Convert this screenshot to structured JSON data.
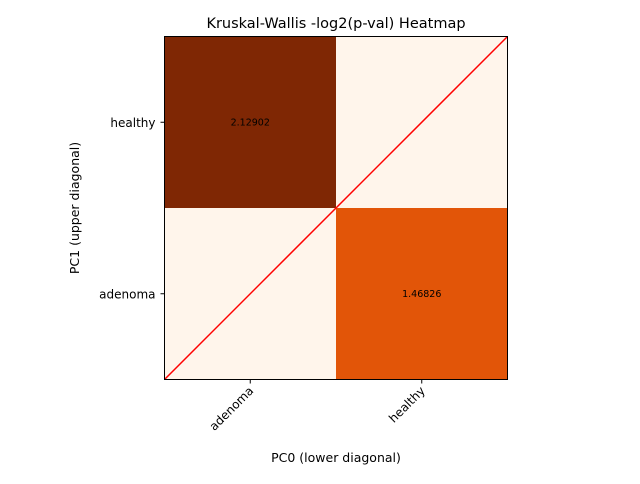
{
  "chart_data": {
    "type": "heatmap",
    "title": "Kruskal-Wallis -log2(p-val) Heatmap",
    "xlabel": "PC0 (lower diagonal)",
    "ylabel": "PC1 (upper diagonal)",
    "x_categories": [
      "adenoma",
      "healthy"
    ],
    "y_categories": [
      "healthy",
      "adenoma"
    ],
    "cells": [
      {
        "row": "healthy",
        "col": "adenoma",
        "value": 2.12902,
        "label": "2.12902",
        "color": "#7f2704"
      },
      {
        "row": "healthy",
        "col": "healthy",
        "value": 0,
        "label": "",
        "color": "#fff5eb"
      },
      {
        "row": "adenoma",
        "col": "adenoma",
        "value": 0,
        "label": "",
        "color": "#fff5eb"
      },
      {
        "row": "adenoma",
        "col": "healthy",
        "value": 1.46826,
        "label": "1.46826",
        "color": "#e25508"
      }
    ],
    "colormap": "Oranges",
    "diagonal_line": {
      "color": "#ff0000",
      "from": "bottom-left",
      "to": "top-right"
    },
    "grid": false,
    "legend": "none"
  }
}
